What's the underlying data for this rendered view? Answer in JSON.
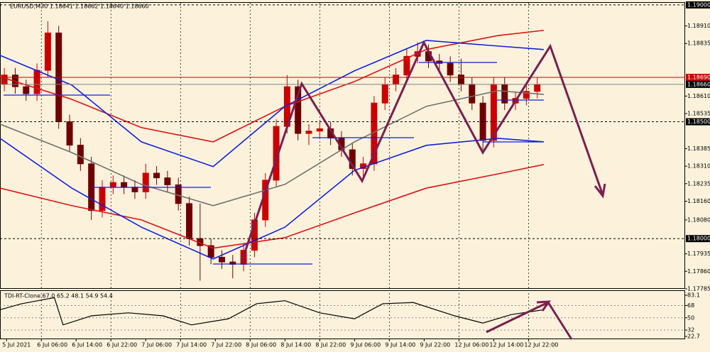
{
  "chart_data": [
    {
      "type": "candlestick",
      "title": "EURUSD,M30  1.18641 1.18662 1.18640 1.18660",
      "x": [
        2,
        7,
        12,
        17,
        22,
        27,
        32,
        37,
        42,
        47,
        52,
        57,
        62,
        67,
        72,
        77,
        82,
        87,
        92,
        97,
        102,
        107,
        112,
        117,
        122,
        127,
        132,
        137,
        142,
        147,
        152,
        157,
        162,
        167,
        172,
        177,
        182,
        187,
        192,
        197,
        202,
        207,
        212,
        217,
        222,
        227,
        232,
        237,
        242,
        247
      ],
      "open": [
        1.1866,
        1.187,
        1.1865,
        1.1862,
        1.1872,
        1.1888,
        1.185,
        1.184,
        1.1832,
        1.1812,
        1.1822,
        1.1824,
        1.1822,
        1.182,
        1.1828,
        1.1826,
        1.1823,
        1.1815,
        1.18,
        1.1797,
        1.1792,
        1.179,
        1.1789,
        1.1795,
        1.1808,
        1.1825,
        1.1848,
        1.1865,
        1.1845,
        1.1846,
        1.1847,
        1.1843,
        1.1838,
        1.183,
        1.1832,
        1.1858,
        1.1866,
        1.187,
        1.1878,
        1.188,
        1.1876,
        1.1875,
        1.187,
        1.1866,
        1.1858,
        1.1842,
        1.1866,
        1.1858,
        1.186,
        1.1863
      ],
      "high": [
        1.1873,
        1.1873,
        1.1868,
        1.1875,
        1.1893,
        1.1891,
        1.1853,
        1.1843,
        1.1835,
        1.1825,
        1.1827,
        1.1827,
        1.1825,
        1.1832,
        1.1831,
        1.1829,
        1.1826,
        1.1818,
        1.1815,
        1.18,
        1.1795,
        1.1793,
        1.1798,
        1.1811,
        1.1828,
        1.1851,
        1.187,
        1.1868,
        1.1849,
        1.185,
        1.185,
        1.1846,
        1.1841,
        1.1835,
        1.1861,
        1.1869,
        1.1873,
        1.1881,
        1.1884,
        1.1883,
        1.1879,
        1.1878,
        1.1877,
        1.1869,
        1.1861,
        1.1869,
        1.1869,
        1.1863,
        1.1866,
        1.1869
      ],
      "low": [
        1.1863,
        1.1862,
        1.1859,
        1.1859,
        1.1869,
        1.1847,
        1.1837,
        1.1829,
        1.1808,
        1.1809,
        1.1819,
        1.1819,
        1.1817,
        1.1817,
        1.1823,
        1.182,
        1.1812,
        1.1797,
        1.1782,
        1.1789,
        1.1787,
        1.1783,
        1.1786,
        1.1792,
        1.1805,
        1.1822,
        1.1845,
        1.1842,
        1.184,
        1.1843,
        1.184,
        1.1835,
        1.1827,
        1.1825,
        1.1829,
        1.1855,
        1.1863,
        1.1867,
        1.1875,
        1.1873,
        1.1872,
        1.1867,
        1.1863,
        1.1855,
        1.1838,
        1.1839,
        1.1855,
        1.1855,
        1.1857,
        1.186
      ],
      "close": [
        1.187,
        1.1865,
        1.1862,
        1.1872,
        1.1888,
        1.185,
        1.184,
        1.1832,
        1.1812,
        1.1822,
        1.1824,
        1.1822,
        1.182,
        1.1828,
        1.1826,
        1.1823,
        1.1815,
        1.18,
        1.1797,
        1.1792,
        1.179,
        1.1789,
        1.1795,
        1.1808,
        1.1825,
        1.1848,
        1.1865,
        1.1845,
        1.1846,
        1.1847,
        1.1843,
        1.1838,
        1.183,
        1.1832,
        1.1858,
        1.1866,
        1.187,
        1.1878,
        1.188,
        1.1876,
        1.1875,
        1.187,
        1.1866,
        1.1858,
        1.1842,
        1.1866,
        1.1858,
        1.186,
        1.1863,
        1.1866
      ],
      "up_color": "#cc0000",
      "down_color": "#700000",
      "overlays": {
        "x": [
          0,
          33,
          65,
          98,
          131,
          163,
          196,
          229,
          250
        ],
        "series": [
          {
            "color": "#e01010",
            "values": [
              1.18693,
              1.18596,
              1.18475,
              1.18414,
              1.18566,
              1.18672,
              1.18809,
              1.18869,
              1.18891
            ]
          },
          {
            "color": "#e01010",
            "values": [
              1.18216,
              1.18141,
              1.1808,
              1.17959,
              1.18004,
              1.1811,
              1.18216,
              1.18277,
              1.18317
            ]
          },
          {
            "color": "#1020e0",
            "values": [
              1.18784,
              1.18657,
              1.18414,
              1.18308,
              1.18566,
              1.18718,
              1.18848,
              1.18824,
              1.18809
            ]
          },
          {
            "color": "#1020e0",
            "values": [
              1.18429,
              1.18216,
              1.18049,
              1.17913,
              1.18049,
              1.18292,
              1.18399,
              1.18429,
              1.18414
            ]
          },
          {
            "color": "#707070",
            "values": [
              1.1849,
              1.18368,
              1.18232,
              1.18141,
              1.18232,
              1.18414,
              1.18566,
              1.18633,
              1.18617
            ]
          }
        ]
      },
      "price_lines": [
        {
          "value": 1.19,
          "label": "1.19000",
          "style": "dashed",
          "color": "#000000"
        },
        {
          "value": 1.1869,
          "label": "1.18690",
          "style": "solid",
          "color": "#cc0000"
        },
        {
          "value": 1.1866,
          "label": "1.18660",
          "style": "solid",
          "color": "#808080"
        },
        {
          "value": 1.185,
          "label": "1.18500",
          "style": "dashed",
          "color": "#000000"
        },
        {
          "value": 1.18,
          "label": "1.18000",
          "style": "dashed",
          "color": "#000000"
        }
      ],
      "xlim": [
        0,
        315
      ],
      "ylim": [
        1.17785,
        1.19021
      ],
      "xticks": [
        {
          "value": 3,
          "label": "5 Jul 2021"
        },
        {
          "value": 19,
          "label": "6 Jul 06:00"
        },
        {
          "value": 35,
          "label": "6 Jul 14:00"
        },
        {
          "value": 51,
          "label": "6 Jul 22:00"
        },
        {
          "value": 67,
          "label": "7 Jul 06:00"
        },
        {
          "value": 83,
          "label": "7 Jul 14:00"
        },
        {
          "value": 99,
          "label": "7 Jul 22:00"
        },
        {
          "value": 115,
          "label": "8 Jul 06:00"
        },
        {
          "value": 131,
          "label": "8 Jul 14:00"
        },
        {
          "value": 147,
          "label": "8 Jul 22:00"
        },
        {
          "value": 163,
          "label": "9 Jul 06:00"
        },
        {
          "value": 179,
          "label": "9 Jul 14:00"
        },
        {
          "value": 195,
          "label": "9 Jul 22:00"
        },
        {
          "value": 211,
          "label": "12 Jul 06:00"
        },
        {
          "value": 227,
          "label": "12 Jul 14:00"
        },
        {
          "value": 243,
          "label": "12 Jul 22:00"
        }
      ],
      "yticks": [
        {
          "value": 1.1891,
          "label": "1.18910"
        },
        1.18835,
        {
          "value": 1.1861,
          "label": "1.18610"
        },
        1.18535,
        1.18385,
        {
          "value": 1.1831,
          "label": "1.18310"
        },
        1.18235,
        {
          "value": 1.1816,
          "label": "1.18160"
        },
        {
          "value": 1.1808,
          "label": "1.18080"
        },
        1.17935,
        {
          "value": 1.1786,
          "label": "1.17860"
        },
        1.17785
      ],
      "grid": true
    },
    {
      "type": "line",
      "title": "TDI-RT-Clone 67.0 65.2 48.1 54.9 54.4",
      "x": [
        0,
        10,
        25,
        29,
        42,
        59,
        75,
        88,
        105,
        118,
        131,
        147,
        163,
        176,
        190,
        209,
        222,
        235,
        250
      ],
      "series": [
        {
          "color": "#000000",
          "values": [
            61.8,
            70.7,
            79.5,
            39.6,
            52.9,
            57.3,
            52.9,
            39.6,
            48.5,
            70.7,
            75.1,
            57.3,
            48.5,
            70.7,
            72.4,
            52.9,
            42.3,
            54.7,
            61.8
          ]
        }
      ],
      "levels": [
        68,
        50,
        32
      ],
      "xlim": [
        0,
        315
      ],
      "ylim": [
        19.6,
        90.4
      ],
      "yticks": [
        83.1,
        68,
        50,
        32,
        22.7
      ]
    }
  ]
}
